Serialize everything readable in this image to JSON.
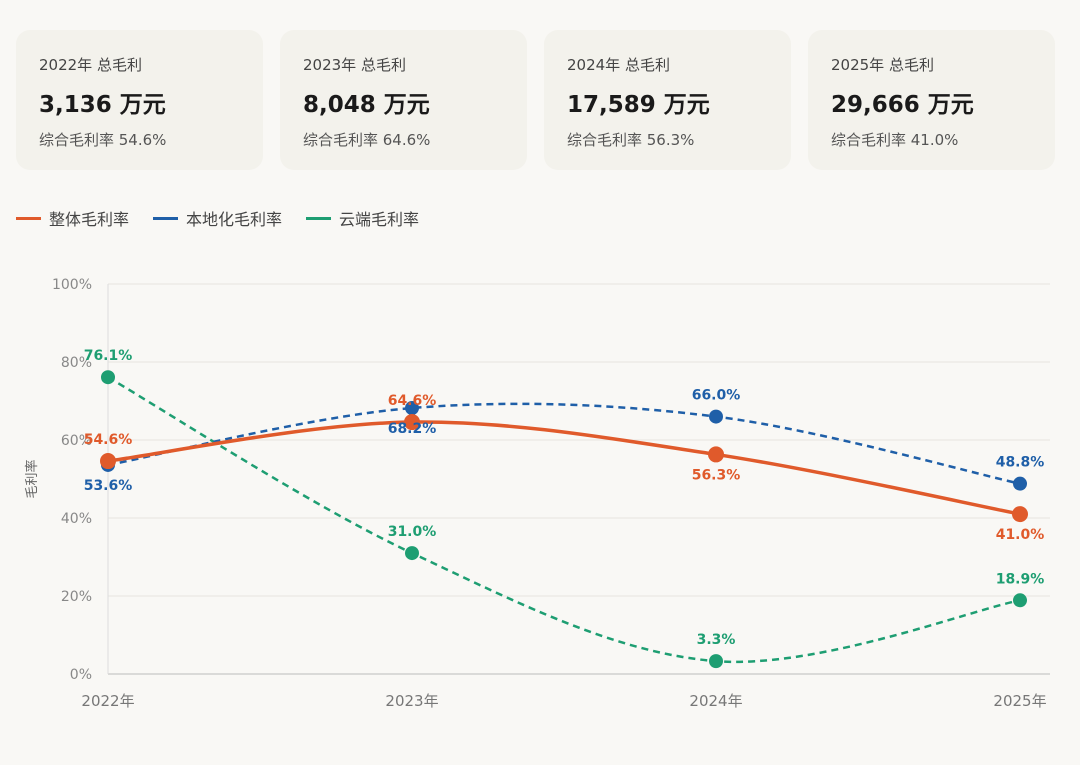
{
  "cards": [
    {
      "title": "2022年 总毛利",
      "value": "3,136 万元",
      "sub": "综合毛利率 54.6%"
    },
    {
      "title": "2023年 总毛利",
      "value": "8,048 万元",
      "sub": "综合毛利率 64.6%"
    },
    {
      "title": "2024年 总毛利",
      "value": "17,589 万元",
      "sub": "综合毛利率 56.3%"
    },
    {
      "title": "2025年 总毛利",
      "value": "29,666 万元",
      "sub": "综合毛利率 41.0%"
    }
  ],
  "chart_data": {
    "type": "line",
    "categories": [
      "2022年",
      "2023年",
      "2024年",
      "2025年"
    ],
    "ylabel": "毛利率",
    "ylim": [
      0,
      100
    ],
    "yticks": [
      "0%",
      "20%",
      "40%",
      "60%",
      "80%",
      "100%"
    ],
    "series": [
      {
        "name": "整体毛利率",
        "values": [
          54.6,
          64.6,
          56.3,
          41.0
        ],
        "labels": [
          "54.6%",
          "64.6%",
          "56.3%",
          "41.0%"
        ],
        "color": "#e05a2b",
        "dashed": false,
        "labelPos": "above"
      },
      {
        "name": "本地化毛利率",
        "values": [
          53.6,
          68.2,
          66.0,
          48.8
        ],
        "labels": [
          "53.6%",
          "68.2%",
          "66.0%",
          "48.8%"
        ],
        "color": "#1f5fa8",
        "dashed": true,
        "labelPos": "below"
      },
      {
        "name": "云端毛利率",
        "values": [
          76.1,
          31.0,
          3.3,
          18.9
        ],
        "labels": [
          "76.1%",
          "31.0%",
          "3.3%",
          "18.9%"
        ],
        "color": "#1e9e72",
        "dashed": true,
        "labelPos": "above"
      }
    ]
  }
}
